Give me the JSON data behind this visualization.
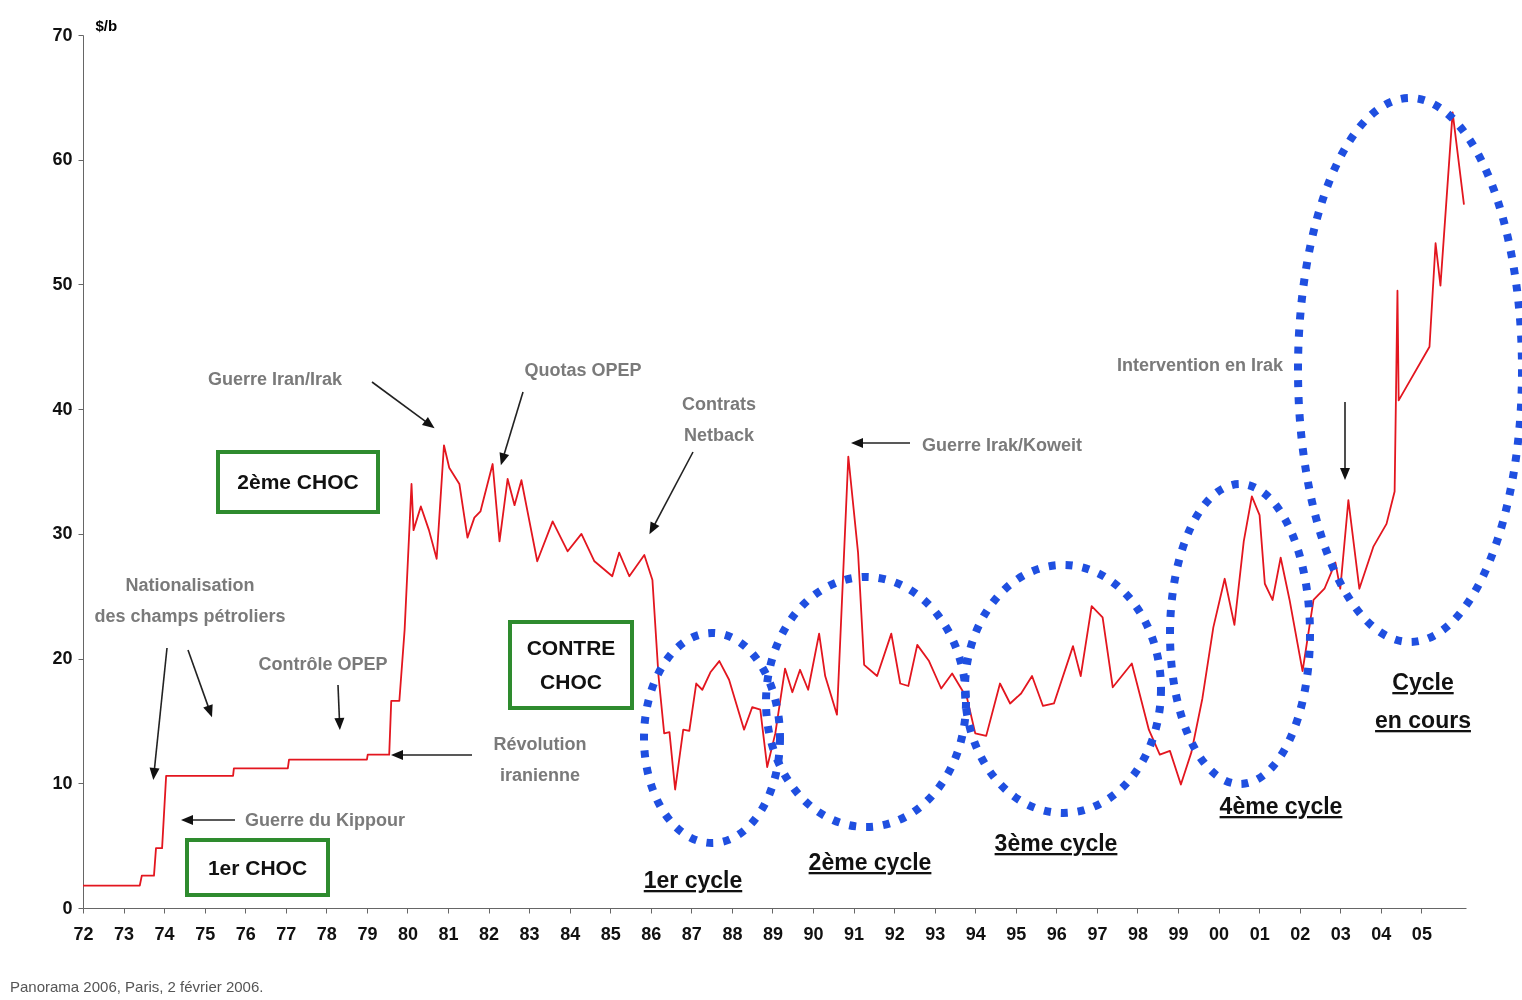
{
  "chart_data": {
    "type": "line",
    "ylabel": "$/b",
    "color": "#e3161f",
    "xlim": [
      1972,
      2006.1
    ],
    "xticks": [
      {
        "value": 1972,
        "label": "72"
      },
      {
        "value": 1973,
        "label": "73"
      },
      {
        "value": 1974,
        "label": "74"
      },
      {
        "value": 1975,
        "label": "75"
      },
      {
        "value": 1976,
        "label": "76"
      },
      {
        "value": 1977,
        "label": "77"
      },
      {
        "value": 1978,
        "label": "78"
      },
      {
        "value": 1979,
        "label": "79"
      },
      {
        "value": 1980,
        "label": "80"
      },
      {
        "value": 1981,
        "label": "81"
      },
      {
        "value": 1982,
        "label": "82"
      },
      {
        "value": 1983,
        "label": "83"
      },
      {
        "value": 1984,
        "label": "84"
      },
      {
        "value": 1985,
        "label": "85"
      },
      {
        "value": 1986,
        "label": "86"
      },
      {
        "value": 1987,
        "label": "87"
      },
      {
        "value": 1988,
        "label": "88"
      },
      {
        "value": 1989,
        "label": "89"
      },
      {
        "value": 1990,
        "label": "90"
      },
      {
        "value": 1991,
        "label": "91"
      },
      {
        "value": 1992,
        "label": "92"
      },
      {
        "value": 1993,
        "label": "93"
      },
      {
        "value": 1994,
        "label": "94"
      },
      {
        "value": 1995,
        "label": "95"
      },
      {
        "value": 1996,
        "label": "96"
      },
      {
        "value": 1997,
        "label": "97"
      },
      {
        "value": 1998,
        "label": "98"
      },
      {
        "value": 1999,
        "label": "99"
      },
      {
        "value": 2000,
        "label": "00"
      },
      {
        "value": 2001,
        "label": "01"
      },
      {
        "value": 2002,
        "label": "02"
      },
      {
        "value": 2003,
        "label": "03"
      },
      {
        "value": 2004,
        "label": "04"
      },
      {
        "value": 2005,
        "label": "05"
      }
    ],
    "ylim": [
      0,
      70
    ],
    "yticks": [
      0,
      10,
      20,
      30,
      40,
      50,
      60,
      70
    ],
    "x": [
      1972.0,
      1973.4,
      1973.45,
      1973.75,
      1973.8,
      1973.95,
      1974.05,
      1975.7,
      1975.72,
      1977.05,
      1977.08,
      1979.0,
      1979.02,
      1979.55,
      1979.6,
      1979.8,
      1979.93,
      1980.1,
      1980.15,
      1980.33,
      1980.53,
      1980.72,
      1980.9,
      1981.03,
      1981.28,
      1981.48,
      1981.65,
      1981.8,
      1982.1,
      1982.27,
      1982.47,
      1982.64,
      1982.81,
      1983.2,
      1983.58,
      1983.95,
      1984.29,
      1984.61,
      1985.05,
      1985.22,
      1985.47,
      1985.84,
      1986.04,
      1986.19,
      1986.33,
      1986.46,
      1986.6,
      1986.8,
      1986.95,
      1987.12,
      1987.27,
      1987.47,
      1987.69,
      1987.93,
      1988.3,
      1988.5,
      1988.7,
      1988.87,
      1989.07,
      1989.31,
      1989.49,
      1989.68,
      1989.88,
      1990.15,
      1990.3,
      1990.59,
      1990.87,
      1991.11,
      1991.26,
      1991.58,
      1991.93,
      1992.15,
      1992.35,
      1992.57,
      1992.86,
      1993.16,
      1993.43,
      1993.8,
      1994.0,
      1994.27,
      1994.61,
      1994.86,
      1995.13,
      1995.4,
      1995.67,
      1995.94,
      1996.41,
      1996.6,
      1996.87,
      1997.14,
      1997.39,
      1997.86,
      1998.28,
      1998.55,
      1998.8,
      1999.07,
      1999.33,
      1999.6,
      1999.87,
      2000.15,
      2000.39,
      2000.62,
      2000.82,
      2001.01,
      2001.14,
      2001.33,
      2001.53,
      2001.75,
      2002.07,
      2002.34,
      2002.61,
      2002.88,
      2003.0,
      2003.2,
      2003.47,
      2003.82,
      2004.14,
      2004.34,
      2004.41,
      2004.44,
      2005.2,
      2005.35,
      2005.47,
      2005.77,
      2006.05
    ],
    "values": [
      1.8,
      1.8,
      2.6,
      2.6,
      4.8,
      4.8,
      10.6,
      10.6,
      11.2,
      11.2,
      11.9,
      11.9,
      12.3,
      12.3,
      16.6,
      16.6,
      22.3,
      34,
      30.3,
      32.2,
      30.3,
      28,
      37.1,
      35.3,
      34,
      29.7,
      31.3,
      31.8,
      35.6,
      29.4,
      34.4,
      32.3,
      34.3,
      27.8,
      31,
      28.6,
      30,
      27.8,
      26.6,
      28.5,
      26.6,
      28.3,
      26.3,
      18.6,
      14,
      14.1,
      9.5,
      14.3,
      14.2,
      18,
      17.5,
      18.9,
      19.8,
      18.3,
      14.3,
      16.1,
      15.9,
      11.3,
      14,
      19.2,
      17.3,
      19.1,
      17.5,
      22,
      18.6,
      15.5,
      36.2,
      28.5,
      19.5,
      18.6,
      22,
      18,
      17.8,
      21.1,
      19.8,
      17.6,
      18.8,
      16.8,
      14,
      13.8,
      18,
      16.4,
      17.2,
      18.6,
      16.2,
      16.4,
      21,
      18.6,
      24.2,
      23.3,
      17.7,
      19.6,
      14.3,
      12.3,
      12.6,
      9.9,
      12.5,
      16.8,
      22.5,
      26.4,
      22.7,
      29.4,
      33,
      31.5,
      26,
      24.7,
      28.1,
      24.7,
      19,
      24.7,
      25.6,
      27.7,
      25.6,
      32.7,
      25.6,
      29,
      30.8,
      33.4,
      49.5,
      40.7,
      45,
      53.3,
      49.9,
      63.8,
      56.4
    ],
    "annotations": [
      "Guerre Iran/Irak",
      "Quotas OPEP",
      "Contrats\nNetback",
      "Guerre Irak/Koweit",
      "Intervention en Irak",
      "Révolution\niranienne",
      "Guerre du Kippour",
      "Contrôle OPEP",
      "Nationalisation\ndes champs pétroliers",
      "2ème CHOC",
      "CONTRE\nCHOC",
      "1er CHOC",
      "1er cycle",
      "2ème cycle",
      "3ème cycle",
      "4ème cycle",
      "Cycle\nen cours",
      "Panorama 2006, Paris, 2 février 2006."
    ]
  }
}
